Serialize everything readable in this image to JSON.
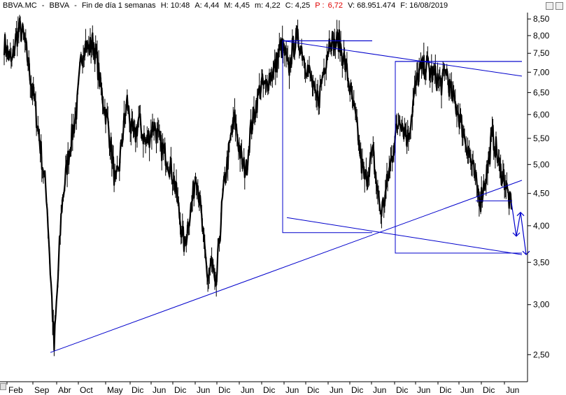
{
  "header": {
    "symbol": "BBVA.MC",
    "name": "BBVA",
    "period": "Fin de día 1 semanas",
    "h": "H: 10:48",
    "a": "A: 4,44",
    "m_high": "M: 4,45",
    "m_low": "m: 4,22",
    "c": "C: 4,25",
    "p_label": "P :",
    "p_value": "6,72",
    "v": "V: 68.951.474",
    "f": "F: 16/08/2019",
    "sep": "-"
  },
  "chart_data": {
    "type": "line",
    "title": "",
    "price_scale": "log",
    "ylim": [
      2.3,
      8.7
    ],
    "y_ticks": [
      "8,50",
      "8,00",
      "7,50",
      "7,00",
      "6,50",
      "6,00",
      "5,50",
      "5,00",
      "4,50",
      "4,00",
      "3,50",
      "3,00",
      "2,50"
    ],
    "y_tick_values": [
      8.5,
      8.0,
      7.5,
      7.0,
      6.5,
      6.0,
      5.5,
      5.0,
      4.5,
      4.0,
      3.5,
      3.0,
      2.5
    ],
    "x_ticks": [
      "Feb",
      "Sep",
      "Abr",
      "Oct",
      "May",
      "Dic",
      "Jun",
      "Dic",
      "Jun",
      "Dic",
      "Jun",
      "Dic",
      "Jun",
      "Dic",
      "Jun",
      "Dic",
      "Jun",
      "Dic",
      "Jun",
      "Dic",
      "Jun",
      "Dic",
      "Jun"
    ],
    "series": [
      {
        "values": [
          7.8,
          7.5,
          7.2,
          7.9,
          8.2,
          8.0,
          7.4,
          6.8,
          6.2,
          5.6,
          5.0,
          4.5,
          3.4,
          2.55,
          3.3,
          4.3,
          4.8,
          5.3,
          5.7,
          6.2,
          7.3,
          7.8,
          7.6,
          7.8,
          7.4,
          6.7,
          6.2,
          5.8,
          5.2,
          4.6,
          5.0,
          5.7,
          6.3,
          5.7,
          5.5,
          5.9,
          5.6,
          5.4,
          5.6,
          5.8,
          5.5,
          5.3,
          5.2,
          5.0,
          4.8,
          4.4,
          4.0,
          3.7,
          4.1,
          4.4,
          4.9,
          4.3,
          3.7,
          3.3,
          3.5,
          3.1,
          3.8,
          4.5,
          5.0,
          5.5,
          5.9,
          5.4,
          5.0,
          4.9,
          5.6,
          6.0,
          6.4,
          6.7,
          6.6,
          6.9,
          7.0,
          7.3,
          7.7,
          7.5,
          7.0,
          7.6,
          7.9,
          7.8,
          7.4,
          7.1,
          6.8,
          6.3,
          6.4,
          7.0,
          7.5,
          8.0,
          7.7,
          7.9,
          7.5,
          7.1,
          6.6,
          6.1,
          5.6,
          5.0,
          4.7,
          5.0,
          5.2,
          4.6,
          4.2,
          4.4,
          4.8,
          5.2,
          5.6,
          6.0,
          5.7,
          5.5,
          6.0,
          6.6,
          7.0,
          7.1,
          7.2,
          7.0,
          6.9,
          6.8,
          6.7,
          7.1,
          6.6,
          6.3,
          6.1,
          5.8,
          5.5,
          5.2,
          4.9,
          4.6,
          4.4,
          4.7,
          5.0,
          5.6,
          5.3,
          4.9,
          4.8,
          4.5,
          4.25
        ]
      }
    ],
    "drawings": [
      {
        "type": "trendline",
        "from": [
          0.0,
          2.52
        ],
        "to": [
          1.0,
          4.72
        ]
      },
      {
        "type": "trendline",
        "from": [
          0.0,
          7.85
        ],
        "to": [
          1.0,
          6.9
        ]
      },
      {
        "type": "trendline",
        "from": [
          0.0,
          4.12
        ],
        "to": [
          1.0,
          3.6
        ]
      },
      {
        "type": "box",
        "x0": 0.0,
        "x1": 1.0,
        "y0": 3.9,
        "y1": 7.85
      },
      {
        "type": "box",
        "x0": 0.0,
        "x1": 1.0,
        "y0": 3.62,
        "y1": 7.28
      },
      {
        "type": "hline",
        "y": 4.38
      },
      {
        "type": "arrow-path",
        "points": [
          4.35,
          3.85,
          4.2,
          3.6
        ]
      }
    ],
    "colors": {
      "price": "#000000",
      "drawings": "#0000cc",
      "grid": "#000000"
    },
    "grid": false
  }
}
